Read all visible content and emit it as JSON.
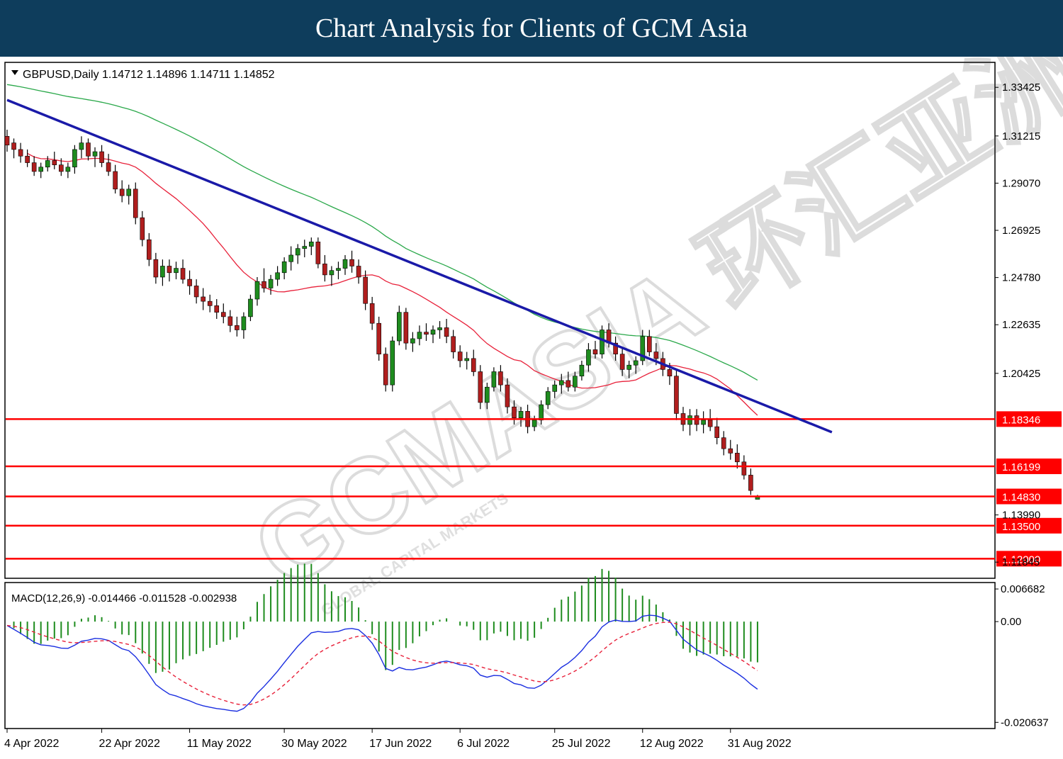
{
  "banner": {
    "title": "Chart Analysis for Clients of GCM Asia"
  },
  "chart_data": {
    "type": "candlestick",
    "symbol_header": "GBPUSD,Daily  1.14712 1.14896 1.14711 1.14852",
    "watermark": "GCMASIA 环汇亚洲",
    "watermark_sub": "GLOBAL CAPITAL MARKETS",
    "price_axis": {
      "ylim": [
        1.1111,
        1.3456
      ],
      "ticks": [
        "1.33425",
        "1.31215",
        "1.29070",
        "1.26925",
        "1.24780",
        "1.22635",
        "1.20425",
        "1.13990",
        "1.11845"
      ]
    },
    "x_ticks": [
      {
        "label": "4 Apr 2022",
        "i": 0
      },
      {
        "label": "22 Apr 2022",
        "i": 14
      },
      {
        "label": "11 May 2022",
        "i": 27
      },
      {
        "label": "30 May 2022",
        "i": 41
      },
      {
        "label": "17 Jun 2022",
        "i": 54
      },
      {
        "label": "6 Jul 2022",
        "i": 67
      },
      {
        "label": "25 Jul 2022",
        "i": 81
      },
      {
        "label": "12 Aug 2022",
        "i": 94
      },
      {
        "label": "31 Aug 2022",
        "i": 107
      }
    ],
    "ohlc": [
      [
        1.312,
        1.315,
        1.305,
        1.308
      ],
      [
        1.309,
        1.311,
        1.302,
        1.306
      ],
      [
        1.306,
        1.309,
        1.3,
        1.303
      ],
      [
        1.303,
        1.306,
        1.298,
        1.3
      ],
      [
        1.3,
        1.303,
        1.294,
        1.296
      ],
      [
        1.296,
        1.3,
        1.293,
        1.298
      ],
      [
        1.298,
        1.303,
        1.296,
        1.301
      ],
      [
        1.301,
        1.305,
        1.297,
        1.299
      ],
      [
        1.299,
        1.302,
        1.294,
        1.296
      ],
      [
        1.296,
        1.3,
        1.293,
        1.298
      ],
      [
        1.298,
        1.308,
        1.295,
        1.306
      ],
      [
        1.306,
        1.312,
        1.302,
        1.309
      ],
      [
        1.309,
        1.311,
        1.301,
        1.303
      ],
      [
        1.303,
        1.307,
        1.298,
        1.305
      ],
      [
        1.305,
        1.308,
        1.298,
        1.3
      ],
      [
        1.3,
        1.304,
        1.294,
        1.296
      ],
      [
        1.296,
        1.299,
        1.286,
        1.288
      ],
      [
        1.288,
        1.292,
        1.282,
        1.285
      ],
      [
        1.285,
        1.29,
        1.281,
        1.288
      ],
      [
        1.288,
        1.291,
        1.272,
        1.275
      ],
      [
        1.275,
        1.278,
        1.262,
        1.265
      ],
      [
        1.265,
        1.268,
        1.253,
        1.256
      ],
      [
        1.256,
        1.259,
        1.245,
        1.248
      ],
      [
        1.248,
        1.256,
        1.244,
        1.253
      ],
      [
        1.253,
        1.256,
        1.246,
        1.25
      ],
      [
        1.25,
        1.255,
        1.247,
        1.252
      ],
      [
        1.252,
        1.256,
        1.245,
        1.247
      ],
      [
        1.247,
        1.251,
        1.24,
        1.244
      ],
      [
        1.244,
        1.247,
        1.236,
        1.239
      ],
      [
        1.239,
        1.243,
        1.233,
        1.237
      ],
      [
        1.237,
        1.24,
        1.232,
        1.235
      ],
      [
        1.235,
        1.238,
        1.229,
        1.232
      ],
      [
        1.232,
        1.236,
        1.227,
        1.23
      ],
      [
        1.23,
        1.233,
        1.223,
        1.226
      ],
      [
        1.226,
        1.23,
        1.221,
        1.224
      ],
      [
        1.224,
        1.232,
        1.22,
        1.23
      ],
      [
        1.23,
        1.24,
        1.228,
        1.238
      ],
      [
        1.238,
        1.248,
        1.235,
        1.246
      ],
      [
        1.246,
        1.252,
        1.241,
        1.243
      ],
      [
        1.243,
        1.249,
        1.24,
        1.247
      ],
      [
        1.247,
        1.253,
        1.244,
        1.25
      ],
      [
        1.25,
        1.257,
        1.247,
        1.255
      ],
      [
        1.255,
        1.262,
        1.251,
        1.258
      ],
      [
        1.258,
        1.263,
        1.254,
        1.261
      ],
      [
        1.261,
        1.265,
        1.257,
        1.262
      ],
      [
        1.262,
        1.266,
        1.258,
        1.264
      ],
      [
        1.264,
        1.266,
        1.252,
        1.254
      ],
      [
        1.254,
        1.258,
        1.246,
        1.249
      ],
      [
        1.249,
        1.253,
        1.244,
        1.251
      ],
      [
        1.251,
        1.255,
        1.247,
        1.252
      ],
      [
        1.252,
        1.258,
        1.249,
        1.256
      ],
      [
        1.256,
        1.26,
        1.25,
        1.253
      ],
      [
        1.253,
        1.256,
        1.245,
        1.248
      ],
      [
        1.248,
        1.251,
        1.233,
        1.236
      ],
      [
        1.236,
        1.239,
        1.224,
        1.227
      ],
      [
        1.227,
        1.23,
        1.21,
        1.213
      ],
      [
        1.213,
        1.216,
        1.196,
        1.199
      ],
      [
        1.199,
        1.221,
        1.196,
        1.219
      ],
      [
        1.219,
        1.235,
        1.217,
        1.232
      ],
      [
        1.232,
        1.234,
        1.215,
        1.218
      ],
      [
        1.218,
        1.223,
        1.214,
        1.22
      ],
      [
        1.22,
        1.226,
        1.217,
        1.223
      ],
      [
        1.223,
        1.227,
        1.219,
        1.222
      ],
      [
        1.222,
        1.226,
        1.218,
        1.224
      ],
      [
        1.224,
        1.228,
        1.22,
        1.225
      ],
      [
        1.225,
        1.229,
        1.218,
        1.221
      ],
      [
        1.221,
        1.224,
        1.211,
        1.214
      ],
      [
        1.214,
        1.217,
        1.207,
        1.21
      ],
      [
        1.21,
        1.214,
        1.206,
        1.211
      ],
      [
        1.211,
        1.215,
        1.203,
        1.205
      ],
      [
        1.205,
        1.208,
        1.188,
        1.191
      ],
      [
        1.191,
        1.2,
        1.188,
        1.198
      ],
      [
        1.198,
        1.207,
        1.196,
        1.205
      ],
      [
        1.205,
        1.208,
        1.196,
        1.199
      ],
      [
        1.199,
        1.202,
        1.186,
        1.189
      ],
      [
        1.189,
        1.192,
        1.181,
        1.184
      ],
      [
        1.184,
        1.189,
        1.18,
        1.187
      ],
      [
        1.187,
        1.19,
        1.177,
        1.18
      ],
      [
        1.18,
        1.185,
        1.178,
        1.183
      ],
      [
        1.183,
        1.192,
        1.181,
        1.19
      ],
      [
        1.19,
        1.198,
        1.188,
        1.196
      ],
      [
        1.196,
        1.201,
        1.193,
        1.199
      ],
      [
        1.199,
        1.204,
        1.195,
        1.201
      ],
      [
        1.201,
        1.205,
        1.196,
        1.198
      ],
      [
        1.198,
        1.205,
        1.196,
        1.203
      ],
      [
        1.203,
        1.21,
        1.201,
        1.208
      ],
      [
        1.208,
        1.218,
        1.205,
        1.215
      ],
      [
        1.215,
        1.219,
        1.211,
        1.213
      ],
      [
        1.213,
        1.226,
        1.211,
        1.224
      ],
      [
        1.224,
        1.227,
        1.216,
        1.218
      ],
      [
        1.218,
        1.221,
        1.21,
        1.213
      ],
      [
        1.213,
        1.216,
        1.203,
        1.206
      ],
      [
        1.206,
        1.21,
        1.202,
        1.208
      ],
      [
        1.208,
        1.212,
        1.204,
        1.21
      ],
      [
        1.21,
        1.224,
        1.208,
        1.221
      ],
      [
        1.221,
        1.224,
        1.212,
        1.214
      ],
      [
        1.214,
        1.218,
        1.208,
        1.211
      ],
      [
        1.211,
        1.214,
        1.203,
        1.206
      ],
      [
        1.206,
        1.209,
        1.199,
        1.203
      ],
      [
        1.203,
        1.206,
        1.183,
        1.186
      ],
      [
        1.186,
        1.189,
        1.178,
        1.181
      ],
      [
        1.181,
        1.188,
        1.176,
        1.185
      ],
      [
        1.185,
        1.188,
        1.178,
        1.181
      ],
      [
        1.181,
        1.187,
        1.177,
        1.183
      ],
      [
        1.183,
        1.188,
        1.178,
        1.18
      ],
      [
        1.18,
        1.184,
        1.172,
        1.175
      ],
      [
        1.175,
        1.178,
        1.167,
        1.17
      ],
      [
        1.17,
        1.174,
        1.165,
        1.168
      ],
      [
        1.168,
        1.172,
        1.161,
        1.164
      ],
      [
        1.164,
        1.167,
        1.156,
        1.158
      ],
      [
        1.158,
        1.161,
        1.149,
        1.151
      ],
      [
        1.147,
        1.149,
        1.147,
        1.1485
      ]
    ],
    "trendline": {
      "start": [
        0,
        1.3285
      ],
      "end": [
        122,
        1.1775
      ],
      "color": "#1a1aa8"
    },
    "support_resistance": [
      {
        "label": "1.18346",
        "value": 1.18346
      },
      {
        "label": "1.16199",
        "value": 1.16199
      },
      {
        "label": "1.14830",
        "value": 1.1483
      },
      {
        "label": "1.13500",
        "value": 1.135
      },
      {
        "label": "1.12000",
        "value": 1.12
      }
    ],
    "colors": {
      "bull": "#1e8c1e",
      "bear": "#b01e1e",
      "ma_fast": "#e8213a",
      "ma_slow": "#2aa84a",
      "level": "#ff0000",
      "label_bg": "#ff0000"
    },
    "macd": {
      "label": "MACD(12,26,9) -0.014466 -0.011528 -0.002938",
      "ticks": [
        "0.006682",
        "0.00",
        "-0.020637"
      ],
      "ylim": [
        -0.0219,
        0.008
      ],
      "macd_color": "#1a2ee0",
      "signal_color": "#e8213a",
      "hist_color": "#1e8c1e"
    }
  }
}
